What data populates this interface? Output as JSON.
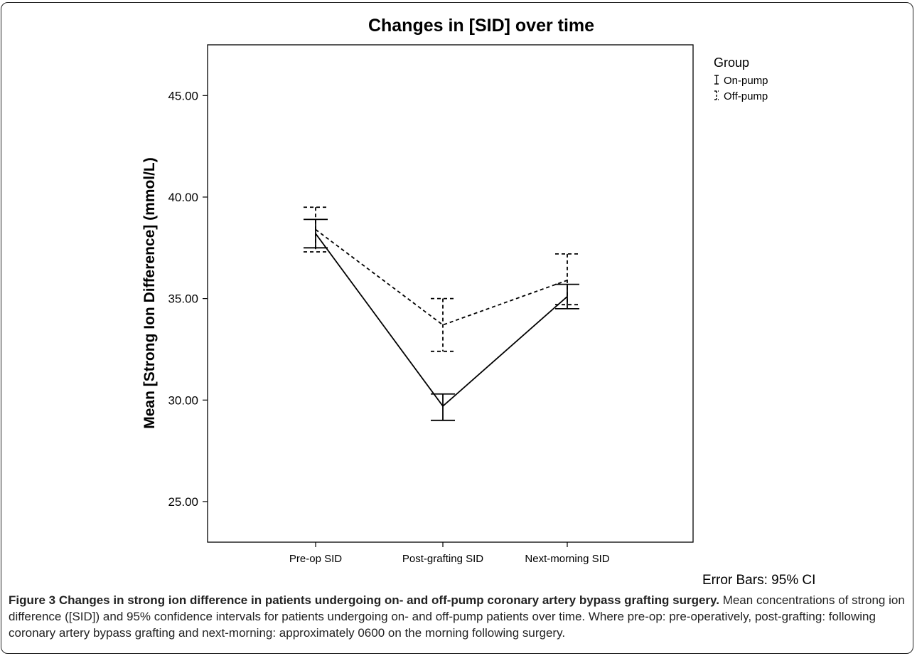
{
  "chart_data": {
    "type": "line",
    "title": "Changes in [SID] over time",
    "xlabel": "",
    "ylabel": "Mean [Strong Ion Difference] (mmol/L)",
    "categories": [
      "Pre-op SID",
      "Post-grafting SID",
      "Next-morning SID"
    ],
    "yticks": [
      "25.00",
      "30.00",
      "35.00",
      "40.00",
      "45.00"
    ],
    "ylim": [
      23.0,
      47.5
    ],
    "legend_title": "Group",
    "legend_position": "right",
    "error_bar_note": "Error Bars: 95% CI",
    "grid": false,
    "series": [
      {
        "name": "On-pump",
        "style": "solid",
        "color": "#000000",
        "values": [
          38.2,
          29.7,
          35.1
        ],
        "ci_low": [
          37.5,
          29.0,
          34.5
        ],
        "ci_high": [
          38.9,
          30.3,
          35.7
        ]
      },
      {
        "name": "Off-pump",
        "style": "dashed",
        "color": "#000000",
        "values": [
          38.4,
          33.7,
          35.9
        ],
        "ci_low": [
          37.3,
          32.4,
          34.7
        ],
        "ci_high": [
          39.5,
          35.0,
          37.2
        ]
      }
    ]
  },
  "caption": {
    "label": "Figure 3 Changes in strong ion difference in patients undergoing on- and off-pump coronary artery bypass grafting surgery.",
    "text": " Mean concentrations of strong ion difference ([SID]) and 95% confidence intervals for patients undergoing on- and off-pump patients over time. Where pre-op: pre-operatively, post-grafting: following coronary artery bypass grafting and next-morning: approximately 0600 on the morning following surgery."
  }
}
